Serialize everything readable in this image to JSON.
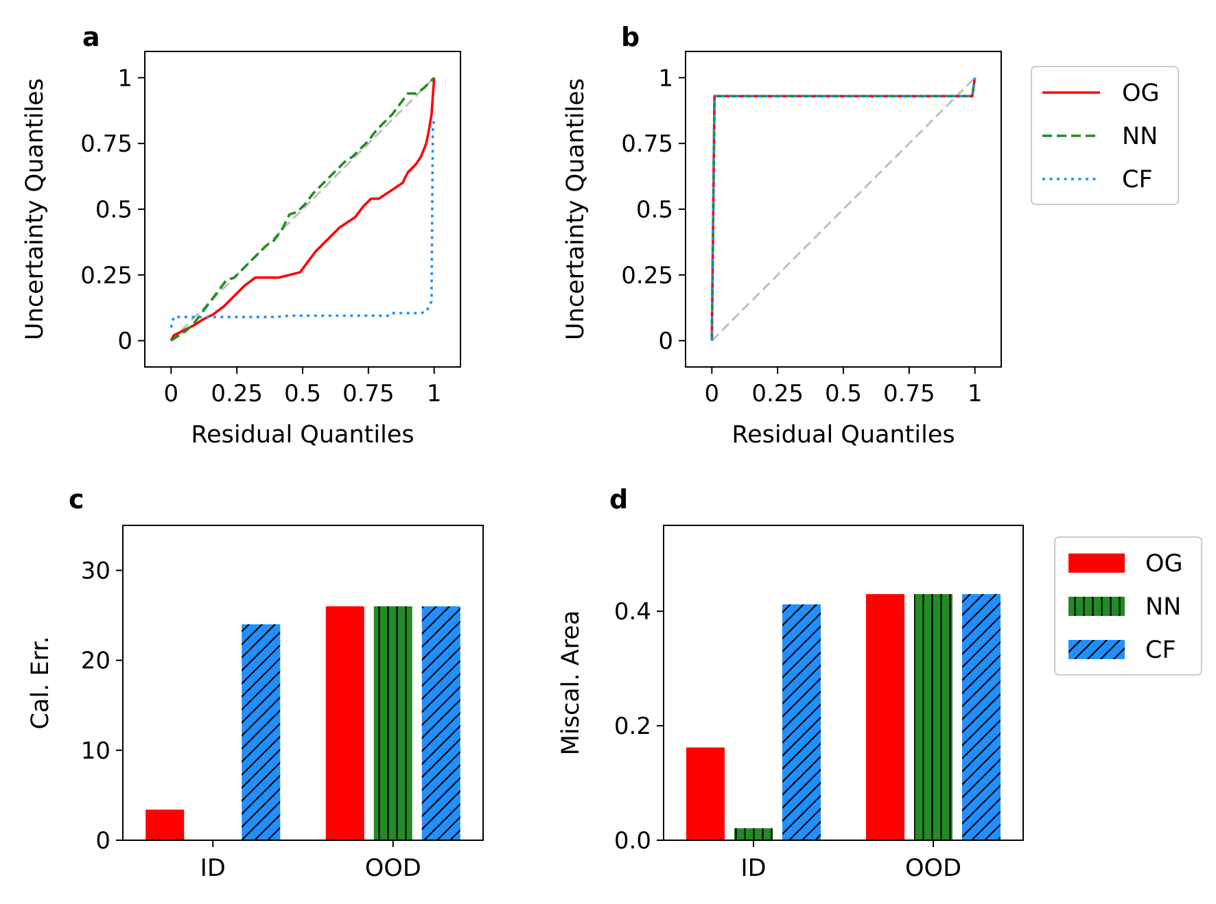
{
  "chart_data": [
    {
      "panel": "a",
      "type": "line",
      "xlabel": "Residual Quantiles",
      "ylabel": "Uncertainty Quantiles",
      "xlim": [
        -0.1,
        1.1
      ],
      "ylim": [
        -0.1,
        1.1
      ],
      "xticks": [
        0,
        0.25,
        0.5,
        0.75,
        1
      ],
      "xtick_labels": [
        "0",
        "0.25",
        "0.5",
        "0.75",
        "1"
      ],
      "yticks": [
        0,
        0.25,
        0.5,
        0.75,
        1
      ],
      "ytick_labels": [
        "0",
        "0.25",
        "0.5",
        "0.75",
        "1"
      ],
      "reference": {
        "name": "ideal",
        "color": "#bfbfbf",
        "x": [
          0,
          1
        ],
        "y": [
          0,
          1
        ]
      },
      "series": [
        {
          "name": "OG",
          "color": "#ff0000",
          "style": "solid",
          "x": [
            0,
            0.01,
            0.05,
            0.09,
            0.12,
            0.16,
            0.2,
            0.24,
            0.28,
            0.32,
            0.37,
            0.41,
            0.45,
            0.49,
            0.52,
            0.55,
            0.58,
            0.61,
            0.64,
            0.67,
            0.7,
            0.73,
            0.76,
            0.79,
            0.82,
            0.85,
            0.88,
            0.9,
            0.93,
            0.95,
            0.97,
            0.98,
            0.99,
            1.0
          ],
          "y": [
            0,
            0.02,
            0.04,
            0.06,
            0.08,
            0.1,
            0.13,
            0.17,
            0.21,
            0.24,
            0.24,
            0.24,
            0.25,
            0.26,
            0.3,
            0.34,
            0.37,
            0.4,
            0.43,
            0.45,
            0.47,
            0.51,
            0.54,
            0.54,
            0.56,
            0.58,
            0.6,
            0.64,
            0.67,
            0.7,
            0.75,
            0.8,
            0.86,
            1.0
          ]
        },
        {
          "name": "NN",
          "color": "#228b22",
          "style": "dashed",
          "x": [
            0,
            0.03,
            0.06,
            0.09,
            0.12,
            0.15,
            0.18,
            0.21,
            0.24,
            0.27,
            0.3,
            0.33,
            0.36,
            0.39,
            0.42,
            0.45,
            0.48,
            0.51,
            0.54,
            0.57,
            0.6,
            0.63,
            0.66,
            0.69,
            0.72,
            0.75,
            0.78,
            0.81,
            0.84,
            0.87,
            0.9,
            0.93,
            0.96,
            1.0
          ],
          "y": [
            0,
            0.02,
            0.04,
            0.07,
            0.11,
            0.15,
            0.19,
            0.23,
            0.24,
            0.27,
            0.3,
            0.33,
            0.36,
            0.38,
            0.42,
            0.48,
            0.49,
            0.52,
            0.56,
            0.59,
            0.62,
            0.65,
            0.68,
            0.7,
            0.73,
            0.76,
            0.8,
            0.83,
            0.86,
            0.9,
            0.94,
            0.94,
            0.96,
            1.0
          ]
        },
        {
          "name": "CF",
          "color": "#1e90ff",
          "style": "dotted",
          "x": [
            0,
            0.01,
            0.1,
            0.2,
            0.3,
            0.4,
            0.45,
            0.6,
            0.7,
            0.83,
            0.84,
            0.95,
            0.97,
            0.99,
            0.995,
            1.0
          ],
          "y": [
            0.05,
            0.09,
            0.09,
            0.09,
            0.09,
            0.09,
            0.095,
            0.095,
            0.095,
            0.095,
            0.105,
            0.105,
            0.11,
            0.15,
            0.8,
            0.85
          ]
        }
      ]
    },
    {
      "panel": "b",
      "type": "line",
      "xlabel": "Residual Quantiles",
      "ylabel": "Uncertainty Quantiles",
      "xlim": [
        -0.1,
        1.1
      ],
      "ylim": [
        -0.1,
        1.1
      ],
      "xticks": [
        0,
        0.25,
        0.5,
        0.75,
        1
      ],
      "xtick_labels": [
        "0",
        "0.25",
        "0.5",
        "0.75",
        "1"
      ],
      "yticks": [
        0,
        0.25,
        0.5,
        0.75,
        1
      ],
      "ytick_labels": [
        "0",
        "0.25",
        "0.5",
        "0.75",
        "1"
      ],
      "reference": {
        "name": "ideal",
        "color": "#bfbfbf",
        "x": [
          0,
          1
        ],
        "y": [
          0,
          1
        ]
      },
      "series": [
        {
          "name": "OG",
          "color": "#ff0000",
          "style": "solid",
          "x": [
            0,
            0.01,
            0.99,
            1.0
          ],
          "y": [
            0,
            0.93,
            0.93,
            1.0
          ]
        },
        {
          "name": "NN",
          "color": "#228b22",
          "style": "dashed",
          "x": [
            0,
            0.01,
            0.99,
            1.0
          ],
          "y": [
            0,
            0.93,
            0.93,
            1.0
          ]
        },
        {
          "name": "CF",
          "color": "#1e90ff",
          "style": "dotted",
          "x": [
            0,
            0.01,
            0.99,
            1.0
          ],
          "y": [
            0,
            0.93,
            0.93,
            1.0
          ]
        }
      ],
      "legend": {
        "position": "outside-right",
        "entries": [
          {
            "label": "OG",
            "color": "#ff0000",
            "style": "solid"
          },
          {
            "label": "NN",
            "color": "#228b22",
            "style": "dashed"
          },
          {
            "label": "CF",
            "color": "#1e90ff",
            "style": "dotted"
          }
        ]
      }
    },
    {
      "panel": "c",
      "type": "bar",
      "xlabel": "",
      "ylabel": "Cal. Err.",
      "ylim": [
        0,
        35
      ],
      "yticks": [
        0,
        10,
        20,
        30
      ],
      "ytick_labels": [
        "0",
        "10",
        "20",
        "30"
      ],
      "categories": [
        "ID",
        "OOD"
      ],
      "series": [
        {
          "name": "OG",
          "color": "#ff0000",
          "hatch": "none",
          "values": [
            3.4,
            26
          ]
        },
        {
          "name": "NN",
          "color": "#228b22",
          "hatch": "vertical",
          "values": [
            0,
            26
          ]
        },
        {
          "name": "CF",
          "color": "#1e90ff",
          "hatch": "diagonal",
          "values": [
            24,
            26
          ]
        }
      ]
    },
    {
      "panel": "d",
      "type": "bar",
      "xlabel": "",
      "ylabel": "Miscal. Area",
      "ylim": [
        0,
        0.55
      ],
      "yticks": [
        0,
        0.2,
        0.4
      ],
      "ytick_labels": [
        "0.0",
        "0.2",
        "0.4"
      ],
      "categories": [
        "ID",
        "OOD"
      ],
      "series": [
        {
          "name": "OG",
          "color": "#ff0000",
          "hatch": "none",
          "values": [
            0.162,
            0.43
          ]
        },
        {
          "name": "NN",
          "color": "#228b22",
          "hatch": "vertical",
          "values": [
            0.021,
            0.43
          ]
        },
        {
          "name": "CF",
          "color": "#1e90ff",
          "hatch": "diagonal",
          "values": [
            0.412,
            0.43
          ]
        }
      ],
      "legend": {
        "position": "outside-right",
        "entries": [
          {
            "label": "OG",
            "color": "#ff0000",
            "hatch": "none"
          },
          {
            "label": "NN",
            "color": "#228b22",
            "hatch": "vertical"
          },
          {
            "label": "CF",
            "color": "#1e90ff",
            "hatch": "diagonal"
          }
        ]
      }
    }
  ]
}
